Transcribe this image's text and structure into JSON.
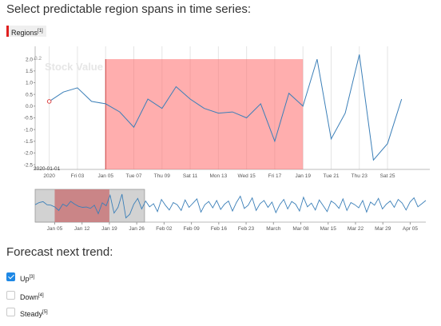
{
  "page": {
    "question1": "Select predictable region spans in time series:",
    "region_tag": {
      "label": "Regions",
      "sup": "[1]",
      "color": "#e02020"
    },
    "question2": "Forecast next trend:"
  },
  "options": [
    {
      "label": "Up",
      "sup": "[3]",
      "checked": true
    },
    {
      "label": "Down",
      "sup": "[4]",
      "checked": false
    },
    {
      "label": "Steady",
      "sup": "[5]",
      "checked": false
    }
  ],
  "chart_data": {
    "type": "line",
    "title": "Stock Value",
    "line_color": "#3b7fb8",
    "region_color": "#ff6b6b",
    "main": {
      "x_range": [
        "2019-12-31",
        "2020-01-28"
      ],
      "ylim": [
        -2.7,
        2.55
      ],
      "y_ticks": [
        "2.0",
        "1.5",
        "1.0",
        "0.5",
        "0.0",
        "-0.5",
        "-1.0",
        "-1.5",
        "-2.0",
        "-2.5"
      ],
      "y_tick_values": [
        2.0,
        1.5,
        1.0,
        0.5,
        0.0,
        -0.5,
        -1.0,
        -1.5,
        -2.0,
        -2.5
      ],
      "y_top_label": "0.2",
      "x_ticks": [
        {
          "date": "2020-01-01",
          "label": "2020"
        },
        {
          "date": "2020-01-03",
          "label": "Fri 03"
        },
        {
          "date": "2020-01-05",
          "label": "Jan 05"
        },
        {
          "date": "2020-01-07",
          "label": "Tue 07"
        },
        {
          "date": "2020-01-09",
          "label": "Thu 09"
        },
        {
          "date": "2020-01-11",
          "label": "Sat 11"
        },
        {
          "date": "2020-01-13",
          "label": "Mon 13"
        },
        {
          "date": "2020-01-15",
          "label": "Wed 15"
        },
        {
          "date": "2020-01-17",
          "label": "Fri 17"
        },
        {
          "date": "2020-01-19",
          "label": "Jan 19"
        },
        {
          "date": "2020-01-21",
          "label": "Tue 21"
        },
        {
          "date": "2020-01-23",
          "label": "Thu 23"
        },
        {
          "date": "2020-01-25",
          "label": "Sat 25"
        }
      ],
      "hover_label": "2020-01-01",
      "region": {
        "start": "2020-01-05",
        "end": "2020-01-19"
      },
      "points": [
        {
          "x": "2020-01-01",
          "y": 0.2
        },
        {
          "x": "2020-01-02",
          "y": 0.6
        },
        {
          "x": "2020-01-03",
          "y": 0.78
        },
        {
          "x": "2020-01-04",
          "y": 0.2
        },
        {
          "x": "2020-01-05",
          "y": 0.1
        },
        {
          "x": "2020-01-06",
          "y": -0.25
        },
        {
          "x": "2020-01-07",
          "y": -0.9
        },
        {
          "x": "2020-01-08",
          "y": 0.3
        },
        {
          "x": "2020-01-09",
          "y": -0.1
        },
        {
          "x": "2020-01-10",
          "y": 0.83
        },
        {
          "x": "2020-01-11",
          "y": 0.3
        },
        {
          "x": "2020-01-12",
          "y": -0.1
        },
        {
          "x": "2020-01-13",
          "y": -0.3
        },
        {
          "x": "2020-01-14",
          "y": -0.25
        },
        {
          "x": "2020-01-15",
          "y": -0.5
        },
        {
          "x": "2020-01-16",
          "y": 0.1
        },
        {
          "x": "2020-01-17",
          "y": -1.5
        },
        {
          "x": "2020-01-18",
          "y": 0.55
        },
        {
          "x": "2020-01-19",
          "y": 0.0
        },
        {
          "x": "2020-01-20",
          "y": 2.0
        },
        {
          "x": "2020-01-21",
          "y": -1.4
        },
        {
          "x": "2020-01-22",
          "y": -0.3
        },
        {
          "x": "2020-01-23",
          "y": 2.2
        },
        {
          "x": "2020-01-24",
          "y": -2.3
        },
        {
          "x": "2020-01-25",
          "y": -1.6
        },
        {
          "x": "2020-01-26",
          "y": 0.3
        }
      ]
    },
    "navigator": {
      "x_range": [
        "2019-12-31",
        "2020-04-09"
      ],
      "window": {
        "start": "2019-12-31",
        "end": "2020-01-28"
      },
      "region": {
        "start": "2020-01-05",
        "end": "2020-01-19"
      },
      "x_ticks": [
        {
          "date": "2020-01-05",
          "label": "Jan 05"
        },
        {
          "date": "2020-01-12",
          "label": "Jan 12"
        },
        {
          "date": "2020-01-19",
          "label": "Jan 19"
        },
        {
          "date": "2020-01-26",
          "label": "Jan 26"
        },
        {
          "date": "2020-02-02",
          "label": "Feb 02"
        },
        {
          "date": "2020-02-09",
          "label": "Feb 09"
        },
        {
          "date": "2020-02-16",
          "label": "Feb 16"
        },
        {
          "date": "2020-02-23",
          "label": "Feb 23"
        },
        {
          "date": "2020-03-01",
          "label": "March"
        },
        {
          "date": "2020-03-08",
          "label": "Mar 08"
        },
        {
          "date": "2020-03-15",
          "label": "Mar 15"
        },
        {
          "date": "2020-03-22",
          "label": "Mar 22"
        },
        {
          "date": "2020-03-29",
          "label": "Mar 29"
        },
        {
          "date": "2020-04-05",
          "label": "Apr 05"
        }
      ],
      "values": [
        0.2,
        0.6,
        0.78,
        0.2,
        0.1,
        -0.25,
        -0.9,
        0.3,
        -0.1,
        0.83,
        0.3,
        -0.1,
        -0.3,
        -0.25,
        -0.5,
        0.1,
        -1.5,
        0.55,
        0.0,
        2.0,
        -1.4,
        -0.3,
        2.2,
        -2.3,
        -1.6,
        0.3,
        1.4,
        -0.6,
        0.9,
        -0.2,
        0.4,
        -1.1,
        1.2,
        0.1,
        -0.8,
        0.6,
        0.2,
        -0.9,
        1.1,
        -0.3,
        0.5,
        1.3,
        -1.2,
        0.2,
        0.8,
        -0.4,
        1.0,
        -0.7,
        0.3,
        0.9,
        -1.0,
        0.6,
        1.8,
        -0.5,
        0.1,
        1.5,
        -0.9,
        0.4,
        1.0,
        -0.3,
        0.7,
        -1.3,
        0.2,
        1.2,
        -0.6,
        0.8,
        0.3,
        -1.0,
        1.6,
        -0.2,
        0.5,
        -0.8,
        1.1,
        0.0,
        -1.1,
        0.9,
        0.4,
        -0.5,
        1.3,
        -0.9,
        0.6,
        0.2,
        -0.4,
        1.0,
        -1.2,
        0.7,
        0.1,
        1.4,
        -0.6,
        0.3,
        0.9,
        -0.3,
        1.2,
        0.5,
        -0.8,
        0.7,
        1.5,
        -0.2,
        0.4,
        1.0
      ]
    }
  }
}
